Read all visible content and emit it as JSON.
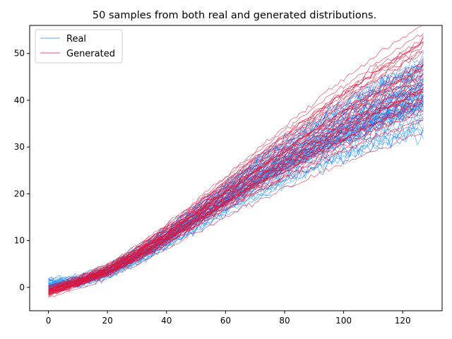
{
  "chart_data": {
    "type": "line",
    "title": "50 samples from both real and generated distributions.",
    "xlabel": "",
    "ylabel": "",
    "xlim": [
      -6.35,
      133.35
    ],
    "ylim": [
      -5,
      56
    ],
    "xticks": [
      0,
      20,
      40,
      60,
      80,
      100,
      120
    ],
    "yticks": [
      0,
      10,
      20,
      30,
      40,
      50
    ],
    "x_range": [
      0,
      127
    ],
    "samples_per_series": 50,
    "legend_position": "upper-left",
    "grid": false,
    "series": [
      {
        "name": "Real",
        "color": "#1f8fff",
        "x": [
          0,
          10,
          20,
          30,
          40,
          50,
          60,
          70,
          80,
          90,
          100,
          110,
          120,
          127
        ],
        "mean": [
          0.4,
          1.2,
          3.2,
          6.6,
          10.4,
          14.6,
          18.8,
          22.8,
          26.4,
          29.8,
          33.0,
          36.0,
          38.8,
          40.5
        ],
        "spread": [
          0.7,
          0.5,
          0.6,
          0.8,
          1.0,
          1.3,
          1.6,
          2.0,
          2.3,
          2.6,
          2.9,
          3.2,
          3.5,
          3.7
        ]
      },
      {
        "name": "Generated",
        "color": "#dc143c",
        "x": [
          0,
          10,
          20,
          30,
          40,
          50,
          60,
          70,
          80,
          90,
          100,
          110,
          120,
          127
        ],
        "mean": [
          -1.0,
          1.0,
          3.4,
          6.8,
          10.7,
          14.9,
          19.2,
          23.3,
          27.2,
          31.0,
          34.7,
          38.2,
          41.4,
          43.5
        ],
        "spread": [
          0.6,
          0.6,
          0.7,
          0.9,
          1.2,
          1.5,
          1.9,
          2.4,
          2.9,
          3.4,
          3.8,
          4.2,
          4.6,
          4.9
        ]
      }
    ]
  }
}
